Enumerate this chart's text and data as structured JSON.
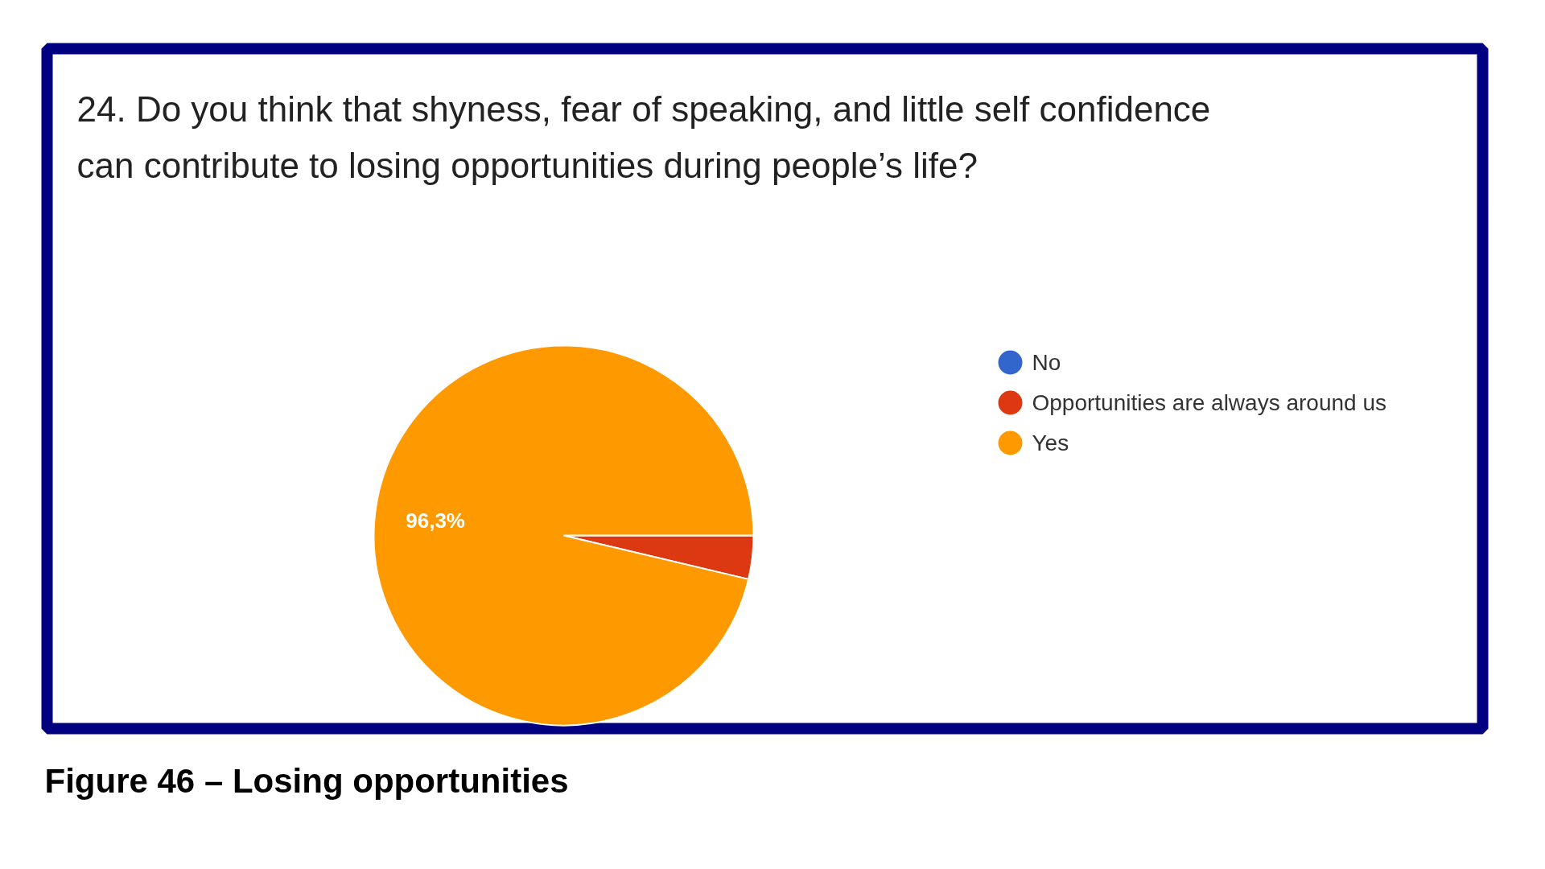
{
  "chart_data": {
    "type": "pie",
    "title": "24. Do you think that shyness, fear of speaking, and little self confidence can contribute to losing opportunities during people’s life?",
    "categories": [
      "No",
      "Opportunities are always around us",
      "Yes"
    ],
    "values": [
      0,
      3.7,
      96.3
    ],
    "colors": [
      "#3366cc",
      "#dc3912",
      "#ff9900"
    ],
    "value_labels": [
      null,
      null,
      "96,3%"
    ],
    "legend": "right",
    "annotations": [
      "Figure 46 – Losing opportunities"
    ]
  }
}
